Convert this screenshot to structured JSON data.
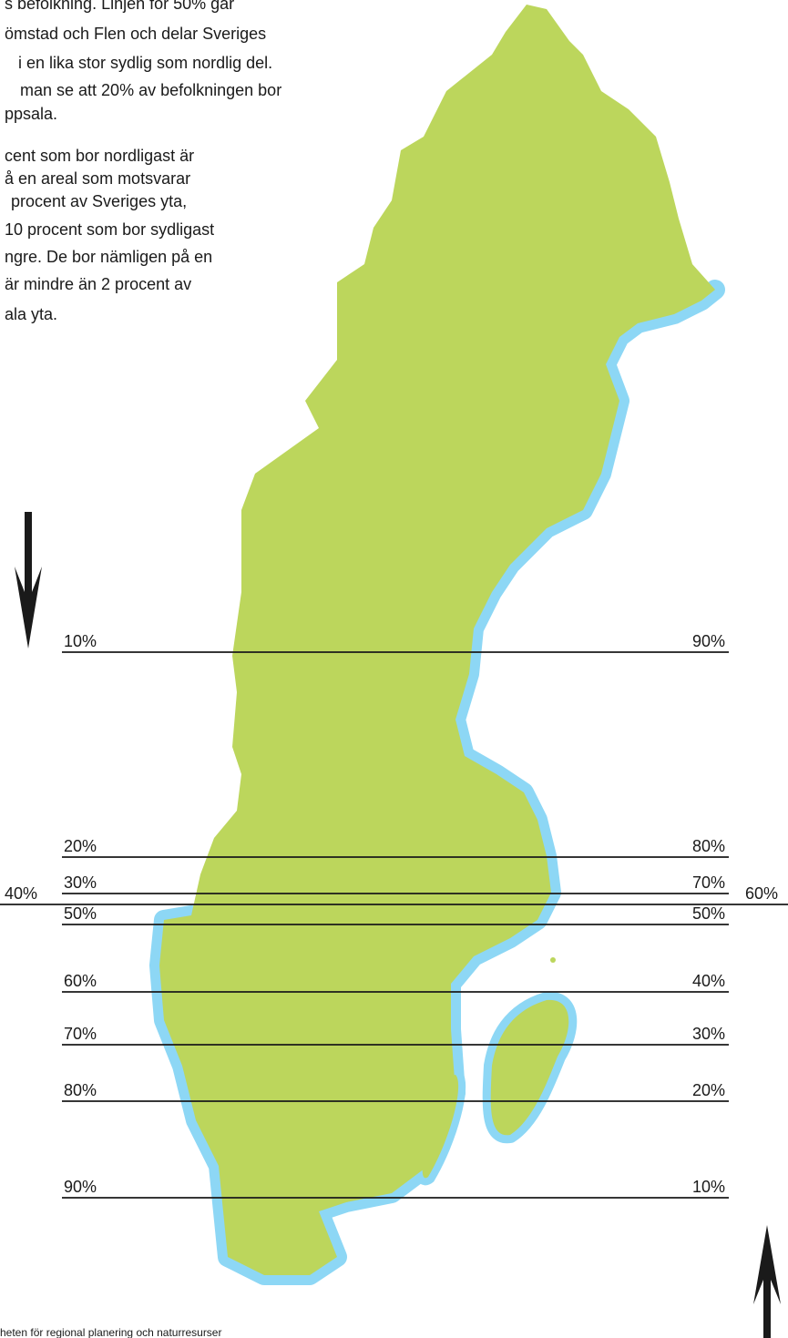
{
  "intro": {
    "paragraph1": [
      "s befolkning. Linjen för 50% går",
      "ömstad och Flen och delar Sveriges",
      "i en lika stor sydlig som nordlig del.",
      "man se att 20% av befolkningen bor",
      "ppsala."
    ],
    "paragraph2": [
      "cent som bor nordligast är",
      "å en areal som motsvarar",
      "procent av Sveriges yta,",
      "10 procent som bor sydligast",
      "ngre. De bor nämligen på en",
      "är mindre än 2 procent av",
      "ala yta."
    ]
  },
  "lines": [
    {
      "left": "10%",
      "right": "90%"
    },
    {
      "left": "20%",
      "right": "80%"
    },
    {
      "left": "30%",
      "right": "70%"
    },
    {
      "left": "40%",
      "right": "60%"
    },
    {
      "left": "50%",
      "right": "50%"
    },
    {
      "left": "60%",
      "right": "40%"
    },
    {
      "left": "70%",
      "right": "30%"
    },
    {
      "left": "80%",
      "right": "20%"
    },
    {
      "left": "90%",
      "right": "10%"
    }
  ],
  "footer": "heten för regional planering och naturresurser"
}
